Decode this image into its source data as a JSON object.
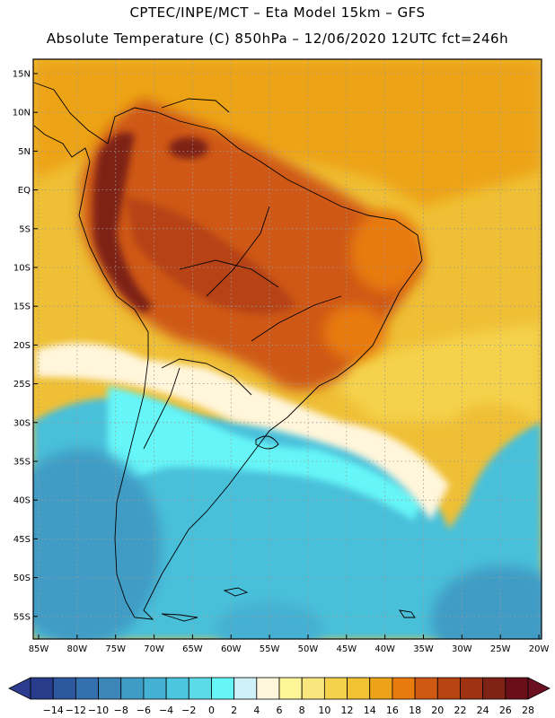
{
  "title_line1": "CPTEC/INPE/MCT –  Eta Model 15km – GFS",
  "title_line2": "Absolute Temperature (C) 850hPa – 12/06/2020 12UTC fct=246h",
  "lat_labels": [
    "15N",
    "10N",
    "5N",
    "EQ",
    "5S",
    "10S",
    "15S",
    "20S",
    "25S",
    "30S",
    "35S",
    "40S",
    "45S",
    "50S",
    "55S"
  ],
  "lon_labels": [
    "85W",
    "80W",
    "75W",
    "70W",
    "65W",
    "60W",
    "55W",
    "50W",
    "45W",
    "40W",
    "35W",
    "30W",
    "25W",
    "20W"
  ],
  "colorbar": {
    "labels": [
      "-14",
      "-12",
      "-10",
      "-8",
      "-6",
      "-4",
      "-2",
      "0",
      "2",
      "4",
      "6",
      "8",
      "10",
      "12",
      "14",
      "16",
      "18",
      "20",
      "22",
      "24",
      "26",
      "28"
    ],
    "colors": [
      "#283c8c",
      "#2d58a0",
      "#3470ad",
      "#3c86ba",
      "#3f9cc5",
      "#44b0d2",
      "#4cc6de",
      "#5bdae8",
      "#66f6f8",
      "#cdf1f6",
      "#fff6dc",
      "#fdf598",
      "#f9e67c",
      "#f5d24c",
      "#f1c233",
      "#eda318",
      "#e97a0e",
      "#cf5812",
      "#b64312",
      "#9e3213",
      "#7e2315",
      "#6a0f19"
    ],
    "under_color": "#2c3c8f",
    "over_color": "#6b1020"
  }
}
